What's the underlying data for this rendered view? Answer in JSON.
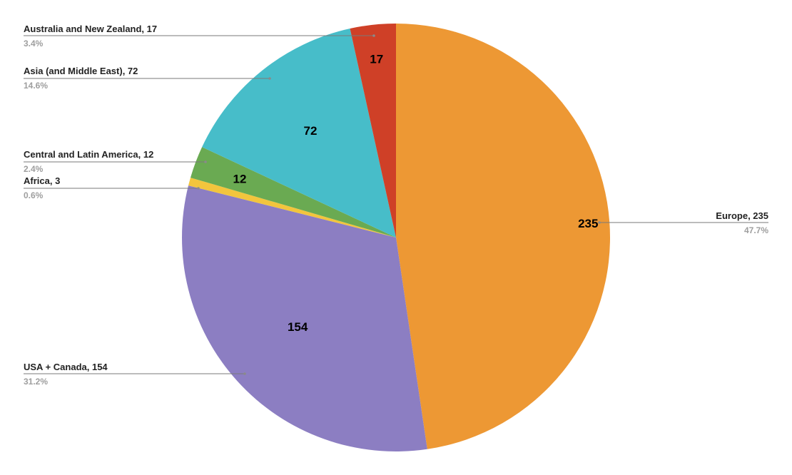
{
  "chart_data": {
    "type": "pie",
    "title": "",
    "legend": "none",
    "start_angle_deg": 0,
    "direction": "clockwise",
    "slices": [
      {
        "name": "Europe",
        "value": 235,
        "percent_label": "47.7%",
        "color": "#ED9834"
      },
      {
        "name": "USA + Canada",
        "value": 154,
        "percent_label": "31.2%",
        "color": "#8C7EC2"
      },
      {
        "name": "Africa",
        "value": 3,
        "percent_label": "0.6%",
        "color": "#F2C53D"
      },
      {
        "name": "Central and Latin America",
        "value": 12,
        "percent_label": "2.4%",
        "color": "#6AAA52"
      },
      {
        "name": "Asia (and Middle East)",
        "value": 72,
        "percent_label": "14.6%",
        "color": "#47BDC9"
      },
      {
        "name": "Australia and New Zealand",
        "value": 17,
        "percent_label": "3.4%",
        "color": "#CF4027"
      }
    ],
    "callouts": [
      {
        "text": "Europe, 235",
        "percent": "47.7%"
      },
      {
        "text": "USA + Canada, 154",
        "percent": "31.2%"
      },
      {
        "text": "Africa, 3",
        "percent": "0.6%"
      },
      {
        "text": "Central and Latin America, 12",
        "percent": "2.4%"
      },
      {
        "text": "Asia (and Middle East), 72",
        "percent": "14.6%"
      },
      {
        "text": "Australia and New Zealand, 17",
        "percent": "3.4%"
      }
    ]
  }
}
